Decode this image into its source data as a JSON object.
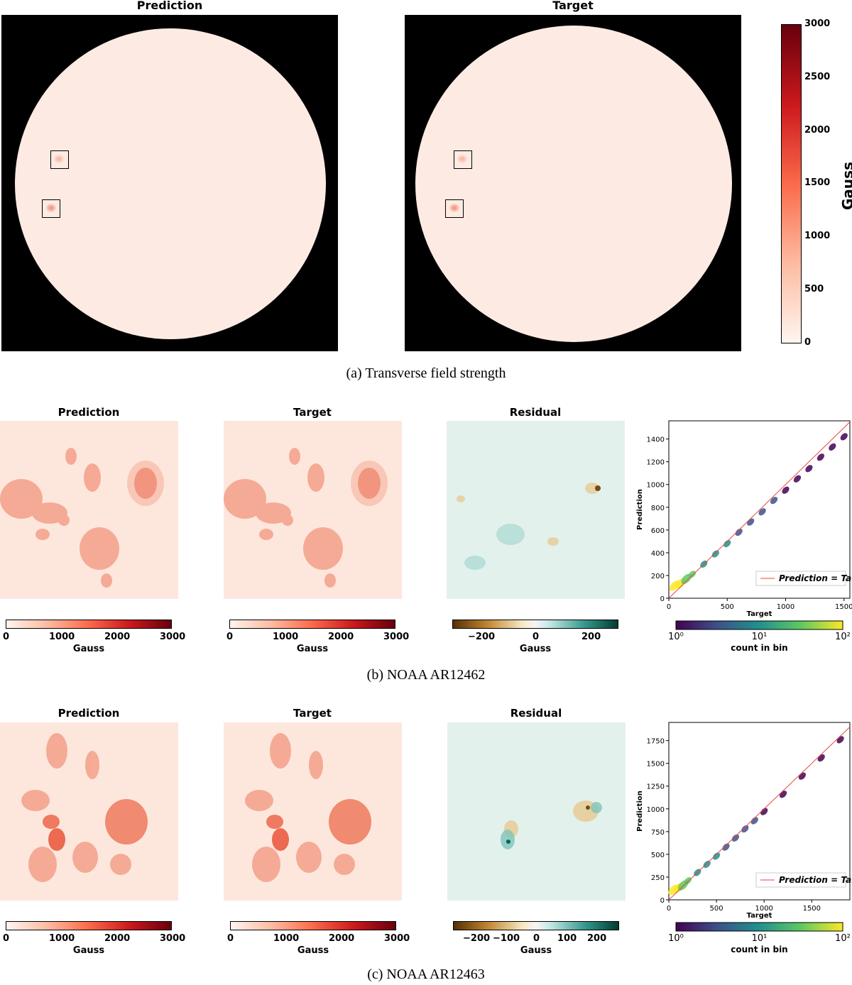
{
  "section_a": {
    "titles": {
      "left": "Prediction",
      "right": "Target"
    },
    "colorbar": {
      "label": "Gauss",
      "ticks": [
        "3000",
        "2500",
        "2000",
        "1500",
        "1000",
        "500",
        "0"
      ]
    },
    "caption": "(a)  Transverse field strength",
    "colors": {
      "bg": "#000000",
      "disk": "#fdebe3"
    }
  },
  "section_b": {
    "titles": {
      "prediction": "Prediction",
      "target": "Target",
      "residual": "Residual"
    },
    "colorbar_reds": {
      "label": "Gauss",
      "ticks": [
        "0",
        "1000",
        "2000",
        "3000"
      ]
    },
    "colorbar_residual": {
      "label": "Gauss",
      "ticks": [
        "−200",
        "0",
        "200"
      ]
    },
    "caption": "(b)  NOAA AR12462"
  },
  "section_c": {
    "titles": {
      "prediction": "Prediction",
      "target": "Target",
      "residual": "Residual"
    },
    "colorbar_reds": {
      "label": "Gauss",
      "ticks": [
        "0",
        "1000",
        "2000",
        "3000"
      ]
    },
    "colorbar_residual": {
      "label": "Gauss",
      "ticks": [
        "−200",
        "−100",
        "0",
        "100",
        "200"
      ]
    },
    "caption": "(c)  NOAA AR12463"
  },
  "chart_data": [
    {
      "type": "scatter",
      "id": "ar12462",
      "title": "",
      "xlabel": "Target",
      "ylabel": "Prediction",
      "xlim": [
        0,
        1550
      ],
      "ylim": [
        0,
        1560
      ],
      "xticks": [
        0,
        500,
        1000,
        1500
      ],
      "yticks": [
        0,
        200,
        400,
        600,
        800,
        1000,
        1200,
        1400
      ],
      "legend": "Prediction = Target",
      "colorbar": {
        "label": "count in bin",
        "ticks": [
          "10⁰",
          "10¹",
          "10²"
        ]
      },
      "x": [
        50,
        100,
        150,
        200,
        300,
        400,
        500,
        600,
        700,
        800,
        900,
        1000,
        1100,
        1200,
        1300,
        1400,
        1500
      ],
      "y": [
        110,
        130,
        170,
        210,
        300,
        390,
        480,
        580,
        670,
        760,
        860,
        950,
        1050,
        1140,
        1240,
        1330,
        1420
      ]
    },
    {
      "type": "scatter",
      "id": "ar12463",
      "title": "",
      "xlabel": "Target",
      "ylabel": "Prediction",
      "xlim": [
        0,
        1900
      ],
      "ylim": [
        0,
        1950
      ],
      "xticks": [
        0,
        500,
        1000,
        1500
      ],
      "yticks": [
        0,
        250,
        500,
        750,
        1000,
        1250,
        1500,
        1750
      ],
      "legend": "Prediction = Target",
      "colorbar": {
        "label": "count in bin",
        "ticks": [
          "10⁰",
          "10¹",
          "10²"
        ]
      },
      "x": [
        50,
        100,
        150,
        200,
        300,
        400,
        500,
        600,
        700,
        800,
        900,
        1000,
        1200,
        1400,
        1600,
        1800
      ],
      "y": [
        110,
        130,
        160,
        210,
        300,
        390,
        480,
        580,
        680,
        780,
        870,
        970,
        1160,
        1360,
        1560,
        1760
      ]
    }
  ]
}
